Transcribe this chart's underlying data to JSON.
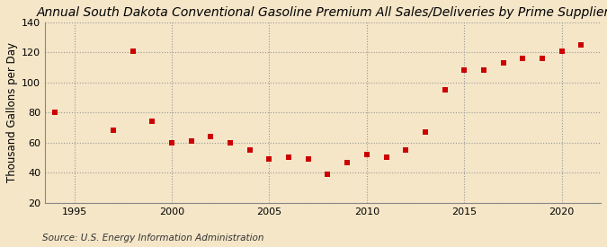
{
  "title": "Annual South Dakota Conventional Gasoline Premium All Sales/Deliveries by Prime Supplier",
  "ylabel": "Thousand Gallons per Day",
  "source": "Source: U.S. Energy Information Administration",
  "years": [
    1994,
    1997,
    1998,
    1999,
    2000,
    2001,
    2002,
    2003,
    2004,
    2005,
    2006,
    2007,
    2008,
    2009,
    2010,
    2011,
    2012,
    2013,
    2014,
    2015,
    2016,
    2017,
    2018,
    2019,
    2020,
    2021
  ],
  "values": [
    80,
    68,
    121,
    74,
    60,
    61,
    64,
    60,
    55,
    49,
    50,
    49,
    39,
    47,
    52,
    50,
    55,
    67,
    95,
    108,
    108,
    113,
    116,
    116,
    121,
    125
  ],
  "marker_color": "#cc0000",
  "marker_size": 4,
  "bg_color": "#f5e6c8",
  "grid_color": "#999999",
  "xlim": [
    1993.5,
    2022
  ],
  "ylim": [
    20,
    140
  ],
  "yticks": [
    20,
    40,
    60,
    80,
    100,
    120,
    140
  ],
  "xticks": [
    1995,
    2000,
    2005,
    2010,
    2015,
    2020
  ],
  "title_fontsize": 10,
  "ylabel_fontsize": 8.5,
  "tick_fontsize": 8,
  "source_fontsize": 7.5
}
